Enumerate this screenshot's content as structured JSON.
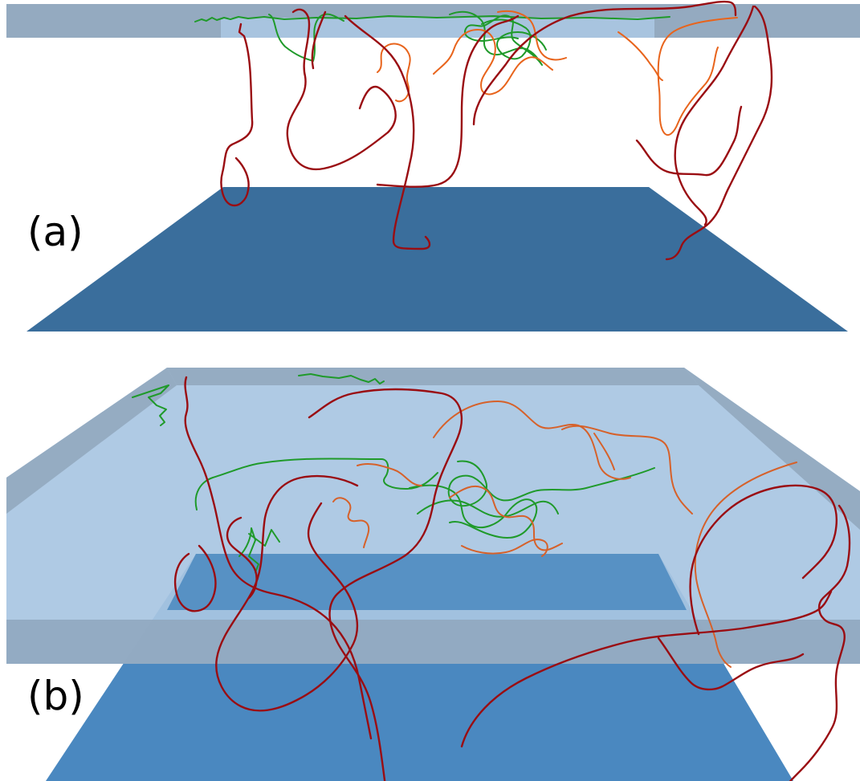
{
  "panels": [
    {
      "label": "(a)"
    },
    {
      "label": "(b)"
    }
  ],
  "colors": {
    "bottom_plate": "#3a6e9c",
    "bottom_plate_b": "#4a88c0",
    "top_plate_slab": "#8fa6be",
    "top_plate_face": "#a3c2de",
    "trajectory_red": "#9a0d12",
    "trajectory_orange": "#e8641c",
    "trajectory_green": "#1f9a2a"
  }
}
